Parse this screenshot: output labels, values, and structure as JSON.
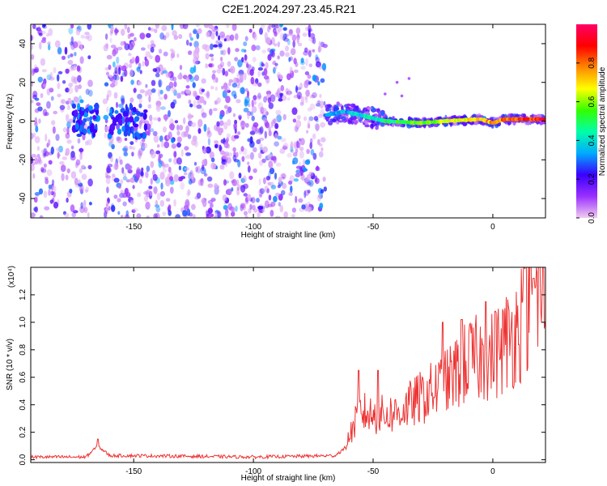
{
  "title": "C2E1.2024.297.23.45.R21",
  "chart_data": [
    {
      "type": "heatmap",
      "xlabel": "Height of straight line (km)",
      "ylabel": "Frequency (Hz)",
      "xlim": [
        -193,
        22
      ],
      "ylim": [
        -50,
        50
      ],
      "x_ticks": [
        "-150",
        "-100",
        "-50",
        "0"
      ],
      "x_tick_values": [
        -150,
        -100,
        -50,
        0
      ],
      "y_ticks": [
        "-40",
        "-20",
        "0",
        "20",
        "40"
      ],
      "y_tick_values": [
        -40,
        -20,
        0,
        20,
        40
      ],
      "colorbar": {
        "label": "Normalized spectral amplitude",
        "range": [
          0,
          1
        ],
        "ticks": [
          "0.0",
          "0.2",
          "0.4",
          "0.6",
          "0.8"
        ],
        "tick_values": [
          0,
          0.2,
          0.4,
          0.6,
          0.8
        ],
        "colors": [
          "#f0ccf0",
          "#9b30ff",
          "#3a00ff",
          "#00aaff",
          "#00ffaa",
          "#33ff00",
          "#ffff00",
          "#ff8800",
          "#ff0000",
          "#ff0066"
        ]
      },
      "scatter_region": {
        "x_range": [
          -193,
          -70
        ],
        "freq_range": [
          -50,
          50
        ]
      },
      "ridge": [
        {
          "x": -70,
          "freq": 3
        },
        {
          "x": -62,
          "freq": 5
        },
        {
          "x": -55,
          "freq": 3
        },
        {
          "x": -45,
          "freq": 0
        },
        {
          "x": -30,
          "freq": -1
        },
        {
          "x": -20,
          "freq": 0
        },
        {
          "x": -5,
          "freq": 1
        },
        {
          "x": 0,
          "freq": -1
        },
        {
          "x": 5,
          "freq": 1
        },
        {
          "x": 22,
          "freq": 1
        }
      ]
    },
    {
      "type": "line",
      "xlabel": "Height of straight line (km)",
      "ylabel": "SNR (10 * v/v)",
      "y_multiplier": "(x10⁴)",
      "xlim": [
        -193,
        22
      ],
      "ylim": [
        -0.02,
        1.4
      ],
      "x_ticks": [
        "-150",
        "-100",
        "-50",
        "0"
      ],
      "x_tick_values": [
        -150,
        -100,
        -50,
        0
      ],
      "y_ticks": [
        "0.0",
        "0.2",
        "0.4",
        "0.6",
        "0.8",
        "1.0",
        "1.2"
      ],
      "y_tick_values": [
        0,
        0.2,
        0.4,
        0.6,
        0.8,
        1.0,
        1.2
      ],
      "series": [
        {
          "color": "#ee3333",
          "baseline": [
            {
              "x": -193,
              "y": 0.02
            },
            {
              "x": -170,
              "y": 0.02
            },
            {
              "x": -165,
              "y": 0.1
            },
            {
              "x": -160,
              "y": 0.03
            },
            {
              "x": -150,
              "y": 0.03
            },
            {
              "x": -100,
              "y": 0.02
            },
            {
              "x": -66,
              "y": 0.03
            },
            {
              "x": -62,
              "y": 0.08
            },
            {
              "x": -58,
              "y": 0.25
            },
            {
              "x": -55,
              "y": 0.35
            },
            {
              "x": -50,
              "y": 0.32
            },
            {
              "x": -40,
              "y": 0.34
            },
            {
              "x": -30,
              "y": 0.45
            },
            {
              "x": -20,
              "y": 0.55
            },
            {
              "x": -10,
              "y": 0.72
            },
            {
              "x": 0,
              "y": 0.75
            },
            {
              "x": 10,
              "y": 0.95
            },
            {
              "x": 15,
              "y": 1.15
            },
            {
              "x": 22,
              "y": 1.2
            }
          ],
          "peaks": [
            {
              "x": -165,
              "y": 0.15
            },
            {
              "x": -56,
              "y": 0.65
            },
            {
              "x": -48,
              "y": 0.65
            },
            {
              "x": -21,
              "y": 1.0
            },
            {
              "x": -13,
              "y": 1.02
            },
            {
              "x": -3,
              "y": 1.15
            },
            {
              "x": 1,
              "y": 1.08
            },
            {
              "x": 13,
              "y": 1.4
            },
            {
              "x": 17,
              "y": 1.32
            }
          ]
        }
      ]
    }
  ]
}
